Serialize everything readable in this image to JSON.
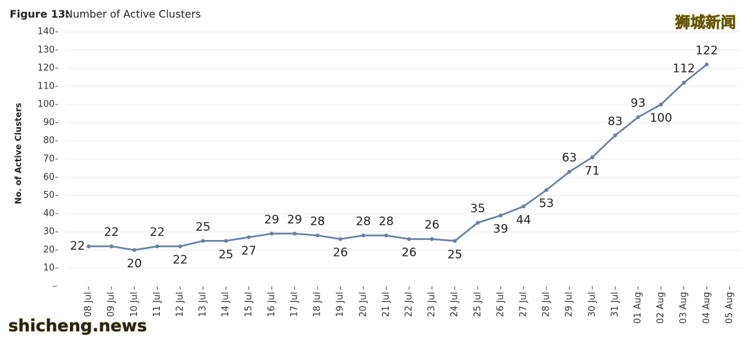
{
  "chart_data": {
    "type": "line",
    "figure_label": "Figure 13:",
    "title": "Number of Active Clusters",
    "y_label": "No. of Active Clusters",
    "annotations": [
      "狮城新闻",
      "shicheng.news"
    ],
    "categories": [
      "08 Jul",
      "09 Jul",
      "10 Jul",
      "11 Jul",
      "12 Jul",
      "13 Jul",
      "14 Jul",
      "15 Jul",
      "16 Jul",
      "17 Jul",
      "18 Jul",
      "19 Jul",
      "20 Jul",
      "21 Jul",
      "22 Jul",
      "23 Jul",
      "24 Jul",
      "25 Jul",
      "26 Jul",
      "27 Jul",
      "28 Jul",
      "29 Jul",
      "30 Jul",
      "31 Jul",
      "01 Aug",
      "02 Aug",
      "03 Aug",
      "04 Aug",
      "05 Aug"
    ],
    "series": [
      {
        "name": "Active Clusters",
        "color": "#6a7fa3",
        "values": [
          22,
          22,
          20,
          22,
          22,
          25,
          25,
          27,
          29,
          29,
          28,
          26,
          28,
          28,
          26,
          26,
          25,
          35,
          39,
          44,
          53,
          63,
          71,
          83,
          93,
          100,
          112,
          122,
          null
        ]
      }
    ],
    "ylim": [
      0,
      140
    ],
    "yticks": [
      10,
      20,
      30,
      40,
      50,
      60,
      70,
      80,
      90,
      100,
      110,
      120,
      130,
      140
    ],
    "grid": true
  }
}
